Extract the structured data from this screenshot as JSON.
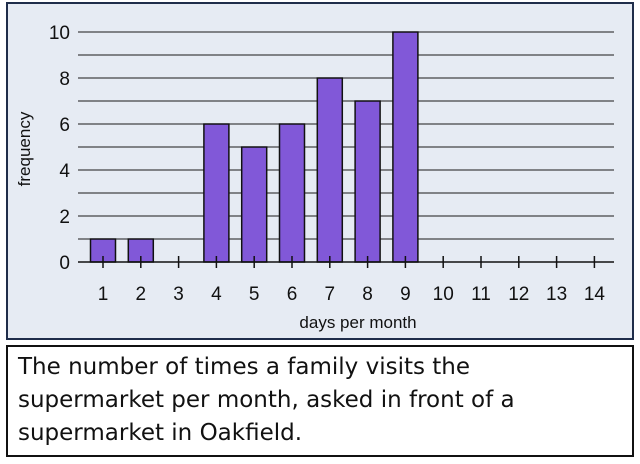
{
  "chart_data": {
    "type": "bar",
    "categories": [
      "1",
      "2",
      "3",
      "4",
      "5",
      "6",
      "7",
      "8",
      "9",
      "10",
      "11",
      "12",
      "13",
      "14"
    ],
    "values": [
      1,
      1,
      0,
      6,
      5,
      6,
      8,
      7,
      10,
      0,
      0,
      0,
      0,
      0
    ],
    "title": "",
    "xlabel": "days per month",
    "ylabel": "frequency",
    "ylim": [
      0,
      10
    ],
    "yticks": [
      "0",
      "2",
      "4",
      "6",
      "8",
      "10"
    ],
    "grid": "horizontal every 1 unit",
    "bar_color": "#8158d8",
    "bar_outline_color": "#111111",
    "panel_background": "#e6ebf3"
  },
  "caption": {
    "text": "The number of times a family visits the supermarket per month, asked in front of a supermarket in Oakfield."
  }
}
